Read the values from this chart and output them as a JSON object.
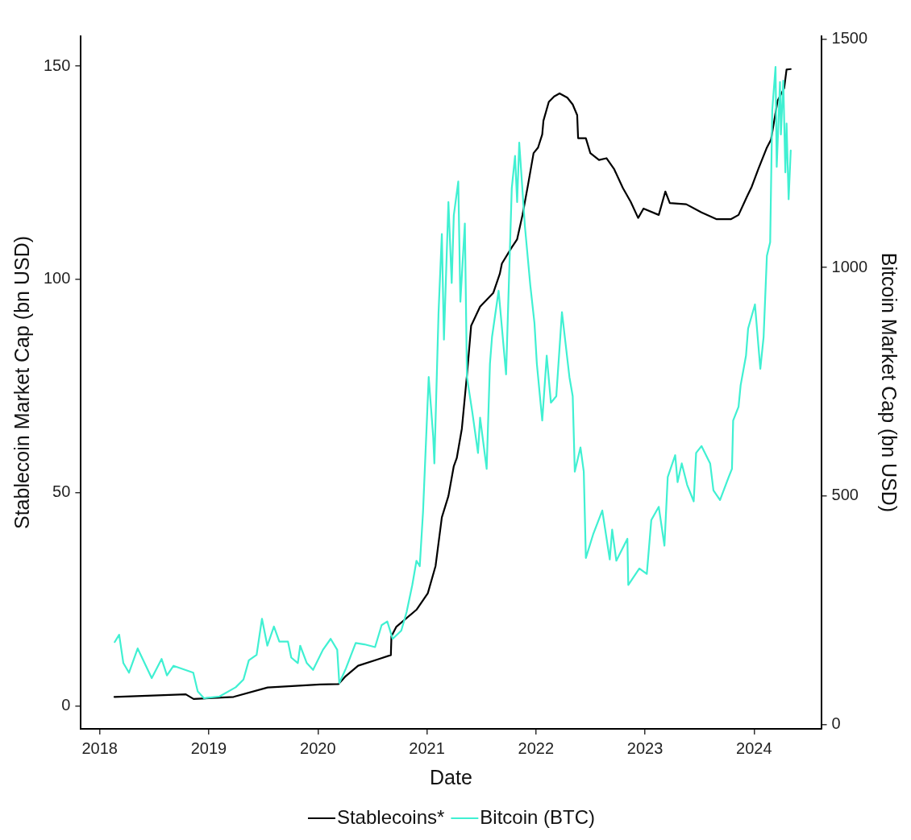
{
  "chart_data": {
    "type": "line",
    "xlabel": "Date",
    "ylabel": "Stablecoin Market Cap (bn USD)",
    "y2label": "Bitcoin Market Cap (bn USD)",
    "xlim": [
      "2017-10-30",
      "2024-08-13"
    ],
    "xticks": [
      {
        "value": "2018",
        "label": "2018"
      },
      {
        "value": "2019",
        "label": "2019"
      },
      {
        "value": "2020",
        "label": "2020"
      },
      {
        "value": "2021",
        "label": "2021"
      },
      {
        "value": "2022",
        "label": "2022"
      },
      {
        "value": "2023",
        "label": "2023"
      },
      {
        "value": "2024",
        "label": "2024"
      }
    ],
    "ylim": [
      -5.4,
      157
    ],
    "yticks": [
      0,
      50,
      100,
      150
    ],
    "y2lim": [
      -10,
      1506
    ],
    "y2ticks": [
      0,
      500,
      1000,
      1500
    ],
    "grid": false,
    "legend": "bottom",
    "marker": "none",
    "line_style": "solid",
    "series": [
      {
        "name": "Bitcoin (BTC)",
        "color": "#40f0d2",
        "axis": "y2",
        "x": [
          "2018-02-20",
          "2018-03-07",
          "2018-03-21",
          "2018-04-09",
          "2018-05-08",
          "2018-06-24",
          "2018-07-27",
          "2018-08-14",
          "2018-09-05",
          "2018-11-10",
          "2018-11-25",
          "2018-12-16",
          "2019-02-06",
          "2019-04-01",
          "2019-04-27",
          "2019-05-15",
          "2019-06-10",
          "2019-06-28",
          "2019-07-16",
          "2019-08-07",
          "2019-08-25",
          "2019-09-23",
          "2019-10-04",
          "2019-10-26",
          "2019-11-03",
          "2019-11-25",
          "2019-12-16",
          "2020-01-18",
          "2020-02-13",
          "2020-03-06",
          "2020-03-13",
          "2020-04-04",
          "2020-05-07",
          "2020-06-05",
          "2020-07-11",
          "2020-08-02",
          "2020-08-21",
          "2020-09-08",
          "2020-10-07",
          "2020-10-25",
          "2020-11-13",
          "2020-11-27",
          "2020-12-08",
          "2020-12-19",
          "2021-01-07",
          "2021-01-22",
          "2021-01-26",
          "2021-02-09",
          "2021-02-20",
          "2021-02-27",
          "2021-03-14",
          "2021-03-25",
          "2021-04-01",
          "2021-04-16",
          "2021-04-23",
          "2021-05-08",
          "2021-05-15",
          "2021-06-02",
          "2021-06-21",
          "2021-06-28",
          "2021-07-20",
          "2021-07-31",
          "2021-08-07",
          "2021-08-29",
          "2021-09-23",
          "2021-10-12",
          "2021-10-23",
          "2021-10-30",
          "2021-11-06",
          "2021-11-25",
          "2021-12-13",
          "2021-12-27",
          "2022-01-04",
          "2022-01-22",
          "2022-02-06",
          "2022-02-20",
          "2022-03-10",
          "2022-03-29",
          "2022-04-23",
          "2022-05-04",
          "2022-05-11",
          "2022-05-30",
          "2022-06-10",
          "2022-06-17",
          "2022-07-12",
          "2022-08-11",
          "2022-09-05",
          "2022-09-13",
          "2022-09-27",
          "2022-11-03",
          "2022-11-06",
          "2022-12-13",
          "2023-01-07",
          "2023-01-22",
          "2023-02-16",
          "2023-03-07",
          "2023-03-18",
          "2023-04-12",
          "2023-04-20",
          "2023-05-04",
          "2023-05-22",
          "2023-06-13",
          "2023-06-21",
          "2023-07-09",
          "2023-08-07",
          "2023-08-18",
          "2023-09-09",
          "2023-10-08",
          "2023-10-19",
          "2023-10-23",
          "2023-11-10",
          "2023-11-17",
          "2023-12-05",
          "2023-12-12",
          "2024-01-04",
          "2024-01-22",
          "2024-02-02",
          "2024-02-13",
          "2024-02-24",
          "2024-03-02",
          "2024-03-13",
          "2024-03-17",
          "2024-03-28",
          "2024-03-31",
          "2024-04-08",
          "2024-04-15",
          "2024-04-19",
          "2024-04-26",
          "2024-05-03"
        ],
        "values": [
          180,
          196,
          134,
          113,
          166,
          101,
          143,
          107,
          128,
          113,
          72,
          57,
          61,
          81,
          98,
          140,
          152,
          231,
          172,
          214,
          181,
          181,
          146,
          134,
          172,
          134,
          119,
          163,
          187,
          163,
          90,
          122,
          178,
          175,
          169,
          217,
          225,
          187,
          205,
          246,
          305,
          358,
          346,
          465,
          760,
          630,
          571,
          902,
          1073,
          842,
          1143,
          966,
          1114,
          1188,
          925,
          1096,
          760,
          683,
          594,
          671,
          559,
          789,
          848,
          949,
          766,
          1173,
          1244,
          1143,
          1273,
          1090,
          961,
          878,
          789,
          665,
          807,
          704,
          718,
          902,
          760,
          718,
          553,
          606,
          553,
          364,
          417,
          468,
          361,
          426,
          358,
          406,
          305,
          341,
          329,
          447,
          476,
          391,
          541,
          589,
          530,
          571,
          524,
          488,
          594,
          609,
          571,
          512,
          491,
          541,
          559,
          665,
          695,
          742,
          807,
          866,
          919,
          778,
          848,
          1025,
          1055,
          1344,
          1439,
          1220,
          1406,
          1291,
          1409,
          1208,
          1315,
          1149,
          1256
        ]
      },
      {
        "name": "Stablecoins*",
        "color": "#000000",
        "x": [
          "2018-02-19",
          "2018-10-16",
          "2018-11-11",
          "2019-03-25",
          "2019-07-17",
          "2020-01-08",
          "2020-03-10",
          "2020-04-01",
          "2020-05-15",
          "2020-07-20",
          "2020-09-02",
          "2020-09-04",
          "2020-09-20",
          "2020-11-28",
          "2021-01-04",
          "2021-01-30",
          "2021-02-20",
          "2021-03-14",
          "2021-04-01",
          "2021-04-11",
          "2021-04-28",
          "2021-05-16",
          "2021-05-29",
          "2021-06-28",
          "2021-08-11",
          "2021-09-02",
          "2021-09-09",
          "2021-10-12",
          "2021-10-30",
          "2021-11-17",
          "2021-12-05",
          "2021-12-24",
          "2022-01-08",
          "2022-01-22",
          "2022-01-26",
          "2022-02-13",
          "2022-03-03",
          "2022-03-21",
          "2022-04-16",
          "2022-05-04",
          "2022-05-19",
          "2022-05-22",
          "2022-06-17",
          "2022-07-02",
          "2022-07-31",
          "2022-08-25",
          "2022-09-20",
          "2022-10-19",
          "2022-11-14",
          "2022-12-09",
          "2022-12-27",
          "2023-02-16",
          "2023-03-10",
          "2023-03-25",
          "2023-05-19",
          "2023-07-09",
          "2023-08-29",
          "2023-10-15",
          "2023-11-10",
          "2023-12-09",
          "2023-12-24",
          "2024-01-15",
          "2024-02-13",
          "2024-02-27",
          "2024-03-20",
          "2024-04-11",
          "2024-04-19",
          "2024-05-03"
        ],
        "values": [
          2.1,
          2.7,
          1.6,
          2.1,
          4.3,
          5.0,
          5.1,
          6.8,
          9.4,
          10.9,
          11.9,
          16.3,
          18.5,
          22.6,
          26.4,
          32.8,
          44.2,
          49.2,
          56.2,
          58.1,
          65.0,
          78.3,
          89.1,
          93.6,
          96.8,
          101.3,
          103.7,
          107.5,
          109.4,
          115.1,
          122.0,
          129.6,
          130.9,
          134.0,
          137.2,
          141.6,
          142.9,
          143.6,
          142.6,
          141.0,
          138.5,
          133.1,
          133.1,
          129.6,
          128.0,
          128.4,
          125.8,
          121.4,
          118.2,
          114.4,
          116.6,
          115.1,
          120.6,
          117.9,
          117.6,
          115.7,
          114.1,
          114.1,
          115.1,
          119.5,
          121.7,
          125.8,
          130.9,
          132.8,
          141.9,
          144.8,
          149.2,
          149.3
        ]
      }
    ]
  }
}
